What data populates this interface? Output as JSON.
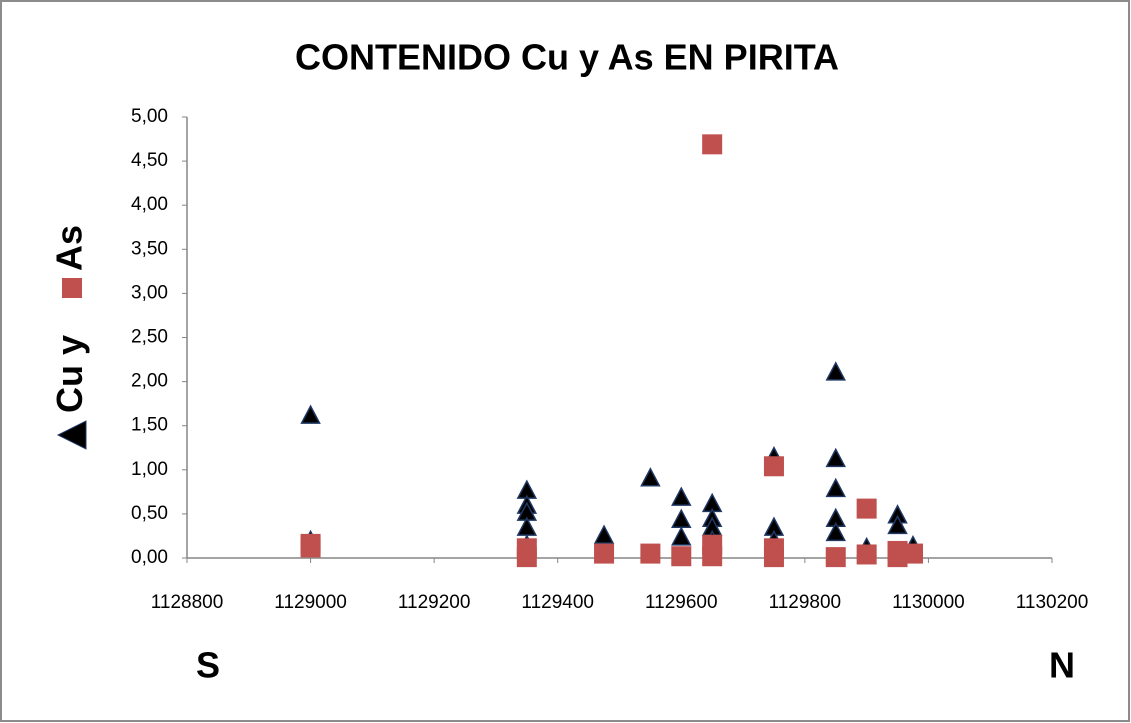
{
  "chart_data": {
    "type": "scatter",
    "title": "CONTENIDO  Cu y As EN PIRITA",
    "ylabel_connector": "y",
    "annotations": [
      "S",
      "N"
    ],
    "xlim": [
      1128800,
      1130200
    ],
    "xticks": [
      1128800,
      1129000,
      1129200,
      1129400,
      1129600,
      1129800,
      1130000,
      1130200
    ],
    "ylim": [
      0,
      5
    ],
    "yticks": [
      {
        "value": 0,
        "label": "0,00"
      },
      {
        "value": 0.5,
        "label": "0,50"
      },
      {
        "value": 1,
        "label": "1,00"
      },
      {
        "value": 1.5,
        "label": "1,50"
      },
      {
        "value": 2,
        "label": "2,00"
      },
      {
        "value": 2.5,
        "label": "2,50"
      },
      {
        "value": 3,
        "label": "3,00"
      },
      {
        "value": 3.5,
        "label": "3,50"
      },
      {
        "value": 4,
        "label": "4,00"
      },
      {
        "value": 4.5,
        "label": "4,50"
      },
      {
        "value": 5,
        "label": "5,00"
      }
    ],
    "grid": false,
    "series": [
      {
        "name": "Cu",
        "color": "#000000",
        "marker": "triangle",
        "x": [
          1129000,
          1129000,
          1129350,
          1129350,
          1129350,
          1129350,
          1129350,
          1129475,
          1129550,
          1129600,
          1129600,
          1129600,
          1129650,
          1129650,
          1129650,
          1129650,
          1129750,
          1129750,
          1129750,
          1129850,
          1129850,
          1129850,
          1129850,
          1129850,
          1129900,
          1129950,
          1129950,
          1129975
        ],
        "values": [
          1.62,
          0.2,
          0.77,
          0.6,
          0.52,
          0.35,
          0.15,
          0.26,
          0.91,
          0.69,
          0.44,
          0.24,
          0.62,
          0.45,
          0.35,
          0.2,
          1.15,
          0.35,
          0.2,
          2.11,
          1.13,
          0.79,
          0.45,
          0.29,
          0.12,
          0.49,
          0.37,
          0.14
        ]
      },
      {
        "name": "As",
        "color": "#c0504d",
        "marker": "square",
        "x": [
          1129000,
          1129000,
          1129350,
          1129350,
          1129475,
          1129550,
          1129600,
          1129650,
          1129650,
          1129650,
          1129750,
          1129750,
          1129750,
          1129850,
          1129900,
          1129900,
          1129950,
          1129950,
          1129975
        ],
        "values": [
          0.16,
          0.12,
          0.11,
          0.01,
          0.05,
          0.05,
          0.02,
          4.69,
          0.15,
          0.02,
          1.04,
          0.11,
          0.01,
          0.01,
          0.56,
          0.04,
          0.08,
          0.01,
          0.05
        ]
      }
    ]
  }
}
